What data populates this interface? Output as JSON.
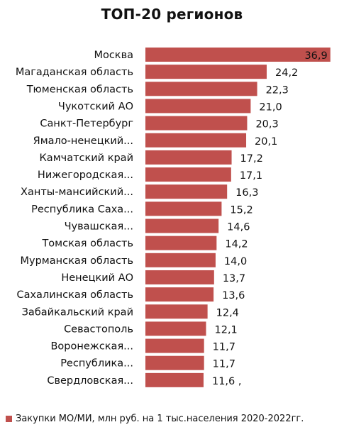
{
  "chart_data": {
    "type": "bar",
    "orientation": "horizontal",
    "title": "ТОП-20 регионов",
    "categories": [
      "Москва",
      "Магаданская область",
      "Тюменская область",
      "Чукотский АО",
      "Санкт-Петербург",
      "Ямало-ненецкий...",
      "Камчатский край",
      "Нижегородская...",
      "Ханты-мансийский...",
      "Республика Саха...",
      "Чувашская...",
      "Томская область",
      "Мурманская область",
      "Ненецкий АО",
      "Сахалинская область",
      "Забайкальский край",
      "Севастополь",
      "Воронежская...",
      "Республика...",
      "Свердловская..."
    ],
    "values": [
      36.9,
      24.2,
      22.3,
      21.0,
      20.3,
      20.1,
      17.2,
      17.1,
      16.3,
      15.2,
      14.6,
      14.2,
      14.0,
      13.7,
      13.6,
      12.4,
      12.1,
      11.7,
      11.7,
      11.6
    ],
    "value_labels": [
      "36,9",
      "24,2",
      "22,3",
      "21,0",
      "20,3",
      "20,1",
      "17,2",
      "17,1",
      "16,3",
      "15,2",
      "14,6",
      "14,2",
      "14,0",
      "13,7",
      "13,6",
      "12,4",
      "12,1",
      "11,7",
      "11,7",
      "11,6 ,"
    ],
    "series": [
      {
        "name": "Закупки МО/МИ, млн руб. на 1 тыс.населения 2020-2022гг.",
        "color": "#c0504d"
      }
    ],
    "xlim": [
      0,
      37.5
    ],
    "grid": false,
    "legend_position": "bottom-left"
  }
}
